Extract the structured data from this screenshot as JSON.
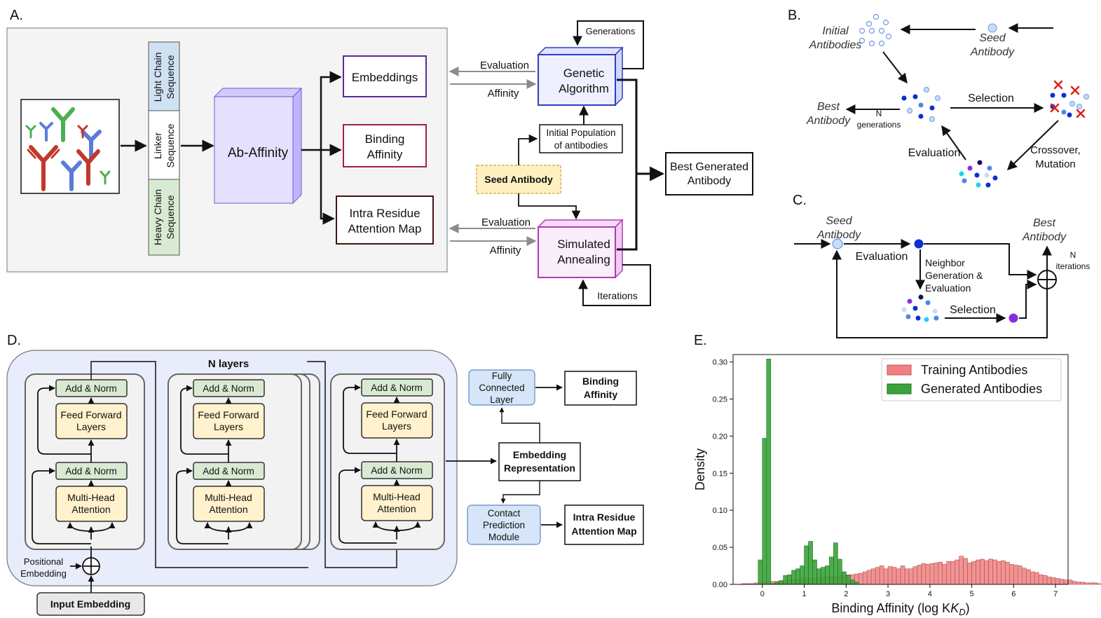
{
  "colors": {
    "arrow": "#111111",
    "grey_arrow": "#8c8c8c",
    "panel_a_bg": "#f4f4f4",
    "light_chain": "#cfe2f3",
    "heavy_chain": "#d9ead3",
    "ab_affinity_box": "#e6e0ff",
    "embeddings_border": "#5b2a9a",
    "binding_border": "#a0204a",
    "intra_border": "#4a1010",
    "genetic_border": "#2d3fbf",
    "genetic_fill": "#eef0ff",
    "annealing_border": "#b03ab5",
    "annealing_fill": "#fbeefb",
    "seed_fill": "#fff0c2",
    "panel_d_bg": "#e8ecfb",
    "layer_bg": "#f2f2f2",
    "add_norm_fill": "#d9ead3",
    "ff_fill": "#fff2cc",
    "blue_box": "#d6e6f8",
    "training_hist": "#f08080",
    "generated_hist": "#3aa33a",
    "dot_light": "#c9dcf7",
    "dot_mid": "#4f86e8",
    "dot_dark": "#0b2fd1",
    "dot_purple": "#8a2be2",
    "dot_cyan": "#22d3ee",
    "cross": "#e21b1b"
  },
  "panel_a": {
    "label": "A.",
    "light_chain_1": "Light Chain",
    "light_chain_2": "Sequence",
    "linker_1": "Linker",
    "linker_2": "Sequence",
    "heavy_chain_1": "Heavy Chain",
    "heavy_chain_2": "Sequence",
    "model": "Ab-Affinity",
    "embeddings": "Embeddings",
    "binding_1": "Binding",
    "binding_2": "Affinity",
    "intra_1": "Intra Residue",
    "intra_2": "Attention Map",
    "evaluation_top": "Evaluation",
    "affinity_top": "Affinity",
    "evaluation_bottom": "Evaluation",
    "affinity_bottom": "Affinity",
    "genetic_1": "Genetic",
    "genetic_2": "Algorithm",
    "generations": "Generations",
    "init_pop_1": "Initial Population",
    "init_pop_2": "of antibodies",
    "seed": "Seed Antibody",
    "annealing_1": "Simulated",
    "annealing_2": "Annealing",
    "iterations": "Iterations",
    "best_1": "Best Generated",
    "best_2": "Antibody"
  },
  "panel_b": {
    "label": "B.",
    "initial_1": "Initial",
    "initial_2": "Antibodies",
    "seed_1": "Seed",
    "seed_2": "Antibody",
    "best_1": "Best",
    "best_2": "Antibody",
    "n": "N",
    "generations": "generations",
    "selection": "Selection",
    "evaluation": "Evaluation",
    "crossover_1": "Crossover,",
    "crossover_2": "Mutation"
  },
  "panel_c": {
    "label": "C.",
    "seed_1": "Seed",
    "seed_2": "Antibody",
    "evaluation": "Evaluation",
    "best_1": "Best",
    "best_2": "Antibody",
    "n": "N",
    "iterations": "iterations",
    "neighbor_1": "Neighbor",
    "neighbor_2": "Generation &",
    "neighbor_3": "Evaluation",
    "selection": "Selection"
  },
  "panel_d": {
    "label": "D.",
    "n_layers": "N layers",
    "add_norm": "Add & Norm",
    "ff_1": "Feed Forward",
    "ff_2": "Layers",
    "mha_1": "Multi-Head",
    "mha_2": "Attention",
    "positional_1": "Positional",
    "positional_2": "Embedding",
    "input": "Input Embedding",
    "fc_1": "Fully",
    "fc_2": "Connected",
    "fc_3": "Layer",
    "binding_1": "Binding",
    "binding_2": "Affinity",
    "embedding_1": "Embedding",
    "embedding_2": "Representation",
    "contact_1": "Contact",
    "contact_2": "Prediction",
    "contact_3": "Module",
    "intra_1": "Intra Residue",
    "intra_2": "Attention Map"
  },
  "panel_e": {
    "label": "E."
  },
  "chart_data": {
    "type": "bar",
    "title": "",
    "xlabel": "Binding Affinity (log K",
    "xlabel_sub": "D",
    "xlabel_end": ")",
    "ylabel": "Density",
    "xlim": [
      -0.7,
      7.3
    ],
    "ylim": [
      0,
      0.31
    ],
    "xticks": [
      0,
      1,
      2,
      3,
      4,
      5,
      6,
      7
    ],
    "xtick_labels": [
      "0",
      "1",
      "2",
      "3",
      "4",
      "5",
      "6",
      "7"
    ],
    "yticks": [
      0.0,
      0.05,
      0.1,
      0.15,
      0.2,
      0.25,
      0.3
    ],
    "ytick_labels": [
      "0.00",
      "0.05",
      "0.10",
      "0.15",
      "0.20",
      "0.25",
      "0.30"
    ],
    "legend": "top-right",
    "grid": false,
    "series": [
      {
        "name": "Training Antibodies",
        "color": "#f08080",
        "bin_width": 0.1,
        "bin_start": -0.5,
        "values": [
          0.001,
          0.001,
          0.001,
          0.002,
          0.002,
          0.003,
          0.003,
          0.004,
          0.004,
          0.005,
          0.005,
          0.006,
          0.006,
          0.007,
          0.007,
          0.008,
          0.008,
          0.009,
          0.009,
          0.01,
          0.01,
          0.011,
          0.011,
          0.012,
          0.012,
          0.013,
          0.013,
          0.014,
          0.015,
          0.017,
          0.019,
          0.021,
          0.023,
          0.025,
          0.021,
          0.024,
          0.023,
          0.021,
          0.025,
          0.021,
          0.021,
          0.024,
          0.026,
          0.028,
          0.027,
          0.028,
          0.029,
          0.03,
          0.027,
          0.031,
          0.031,
          0.033,
          0.038,
          0.035,
          0.029,
          0.031,
          0.033,
          0.034,
          0.032,
          0.034,
          0.033,
          0.031,
          0.032,
          0.03,
          0.027,
          0.026,
          0.025,
          0.022,
          0.02,
          0.017,
          0.016,
          0.013,
          0.012,
          0.01,
          0.009,
          0.008,
          0.007,
          0.006,
          0.006,
          0.004,
          0.003,
          0.003,
          0.002,
          0.002,
          0.002,
          0.001,
          0.001,
          0.001,
          0.001,
          0.001,
          0.001,
          0.001,
          0.001
        ]
      },
      {
        "name": "Generated Antibodies",
        "color": "#3aa33a",
        "bin_width": 0.1,
        "bin_start": -0.1,
        "values": [
          0.033,
          0.197,
          0.304,
          0.001,
          0.003,
          0.005,
          0.012,
          0.013,
          0.019,
          0.021,
          0.025,
          0.052,
          0.058,
          0.033,
          0.021,
          0.023,
          0.025,
          0.037,
          0.056,
          0.034,
          0.017,
          0.012,
          0.006,
          0.003
        ]
      }
    ]
  }
}
